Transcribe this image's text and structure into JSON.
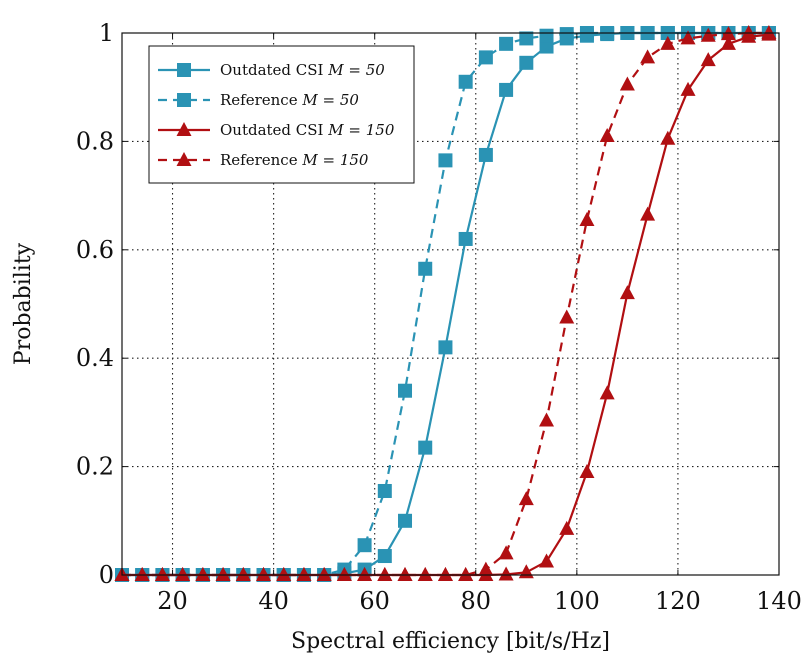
{
  "chart_data": {
    "type": "line",
    "title": "",
    "xlabel": "Spectral efficiency [bit/s/Hz]",
    "ylabel": "Probability",
    "xlim": [
      10,
      140
    ],
    "ylim": [
      0,
      1
    ],
    "xticks": [
      20,
      40,
      60,
      80,
      100,
      120,
      140
    ],
    "yticks": [
      0,
      0.2,
      0.4,
      0.6,
      0.8,
      1
    ],
    "ytick_labels": [
      "0",
      "0.2",
      "0.4",
      "0.6",
      "0.8",
      "1"
    ],
    "grid": true,
    "legend_position": "top-left",
    "colors": {
      "teal": "#2a93b4",
      "red": "#b10f12"
    },
    "series": [
      {
        "name": "Outdated CSI M = 50",
        "label_text": "Outdated CSI ",
        "label_math": "M = 50",
        "color": "#2a93b4",
        "dash": false,
        "marker": "square",
        "x": [
          10,
          14,
          18,
          22,
          26,
          30,
          34,
          38,
          42,
          46,
          50,
          54,
          58,
          62,
          66,
          70,
          74,
          78,
          82,
          86,
          90,
          94,
          98,
          102,
          106,
          110,
          114,
          118,
          122,
          126,
          130,
          134,
          138
        ],
        "y": [
          0,
          0,
          0,
          0,
          0,
          0,
          0,
          0,
          0,
          0,
          0,
          0.003,
          0.01,
          0.035,
          0.1,
          0.235,
          0.42,
          0.62,
          0.775,
          0.895,
          0.945,
          0.975,
          0.99,
          0.995,
          0.998,
          1,
          1,
          1,
          1,
          1,
          1,
          1,
          1
        ]
      },
      {
        "name": "Reference M = 50",
        "label_text": "Reference ",
        "label_math": "M = 50",
        "color": "#2a93b4",
        "dash": true,
        "marker": "square",
        "x": [
          10,
          14,
          18,
          22,
          26,
          30,
          34,
          38,
          42,
          46,
          50,
          54,
          58,
          62,
          66,
          70,
          74,
          78,
          82,
          86,
          90,
          94,
          98,
          102,
          106,
          110,
          114,
          118,
          122,
          126,
          130,
          134,
          138
        ],
        "y": [
          0,
          0,
          0,
          0,
          0,
          0,
          0,
          0,
          0,
          0,
          0,
          0.01,
          0.055,
          0.155,
          0.34,
          0.565,
          0.765,
          0.91,
          0.955,
          0.98,
          0.99,
          0.995,
          0.998,
          1,
          1,
          1,
          1,
          1,
          1,
          1,
          1,
          1,
          1
        ]
      },
      {
        "name": "Outdated CSI M = 150",
        "label_text": "Outdated CSI ",
        "label_math": "M = 150",
        "color": "#b10f12",
        "dash": false,
        "marker": "triangle",
        "x": [
          10,
          14,
          18,
          22,
          26,
          30,
          34,
          38,
          42,
          46,
          50,
          54,
          58,
          62,
          66,
          70,
          74,
          78,
          82,
          86,
          90,
          94,
          98,
          102,
          106,
          110,
          114,
          118,
          122,
          126,
          130,
          134,
          138
        ],
        "y": [
          0,
          0,
          0,
          0,
          0,
          0,
          0,
          0,
          0,
          0,
          0,
          0,
          0,
          0,
          0,
          0,
          0,
          0,
          0,
          0.001,
          0.005,
          0.025,
          0.085,
          0.19,
          0.335,
          0.52,
          0.665,
          0.805,
          0.895,
          0.95,
          0.98,
          0.993,
          0.997
        ]
      },
      {
        "name": "Reference M = 150",
        "label_text": "Reference ",
        "label_math": "M = 150",
        "color": "#b10f12",
        "dash": true,
        "marker": "triangle",
        "x": [
          10,
          14,
          18,
          22,
          26,
          30,
          34,
          38,
          42,
          46,
          50,
          54,
          58,
          62,
          66,
          70,
          74,
          78,
          82,
          86,
          90,
          94,
          98,
          102,
          106,
          110,
          114,
          118,
          122,
          126,
          130,
          134,
          138
        ],
        "y": [
          0,
          0,
          0,
          0,
          0,
          0,
          0,
          0,
          0,
          0,
          0,
          0,
          0,
          0,
          0,
          0,
          0,
          0,
          0.01,
          0.04,
          0.14,
          0.285,
          0.475,
          0.655,
          0.81,
          0.905,
          0.955,
          0.98,
          0.99,
          0.995,
          0.998,
          1,
          1
        ]
      }
    ]
  }
}
